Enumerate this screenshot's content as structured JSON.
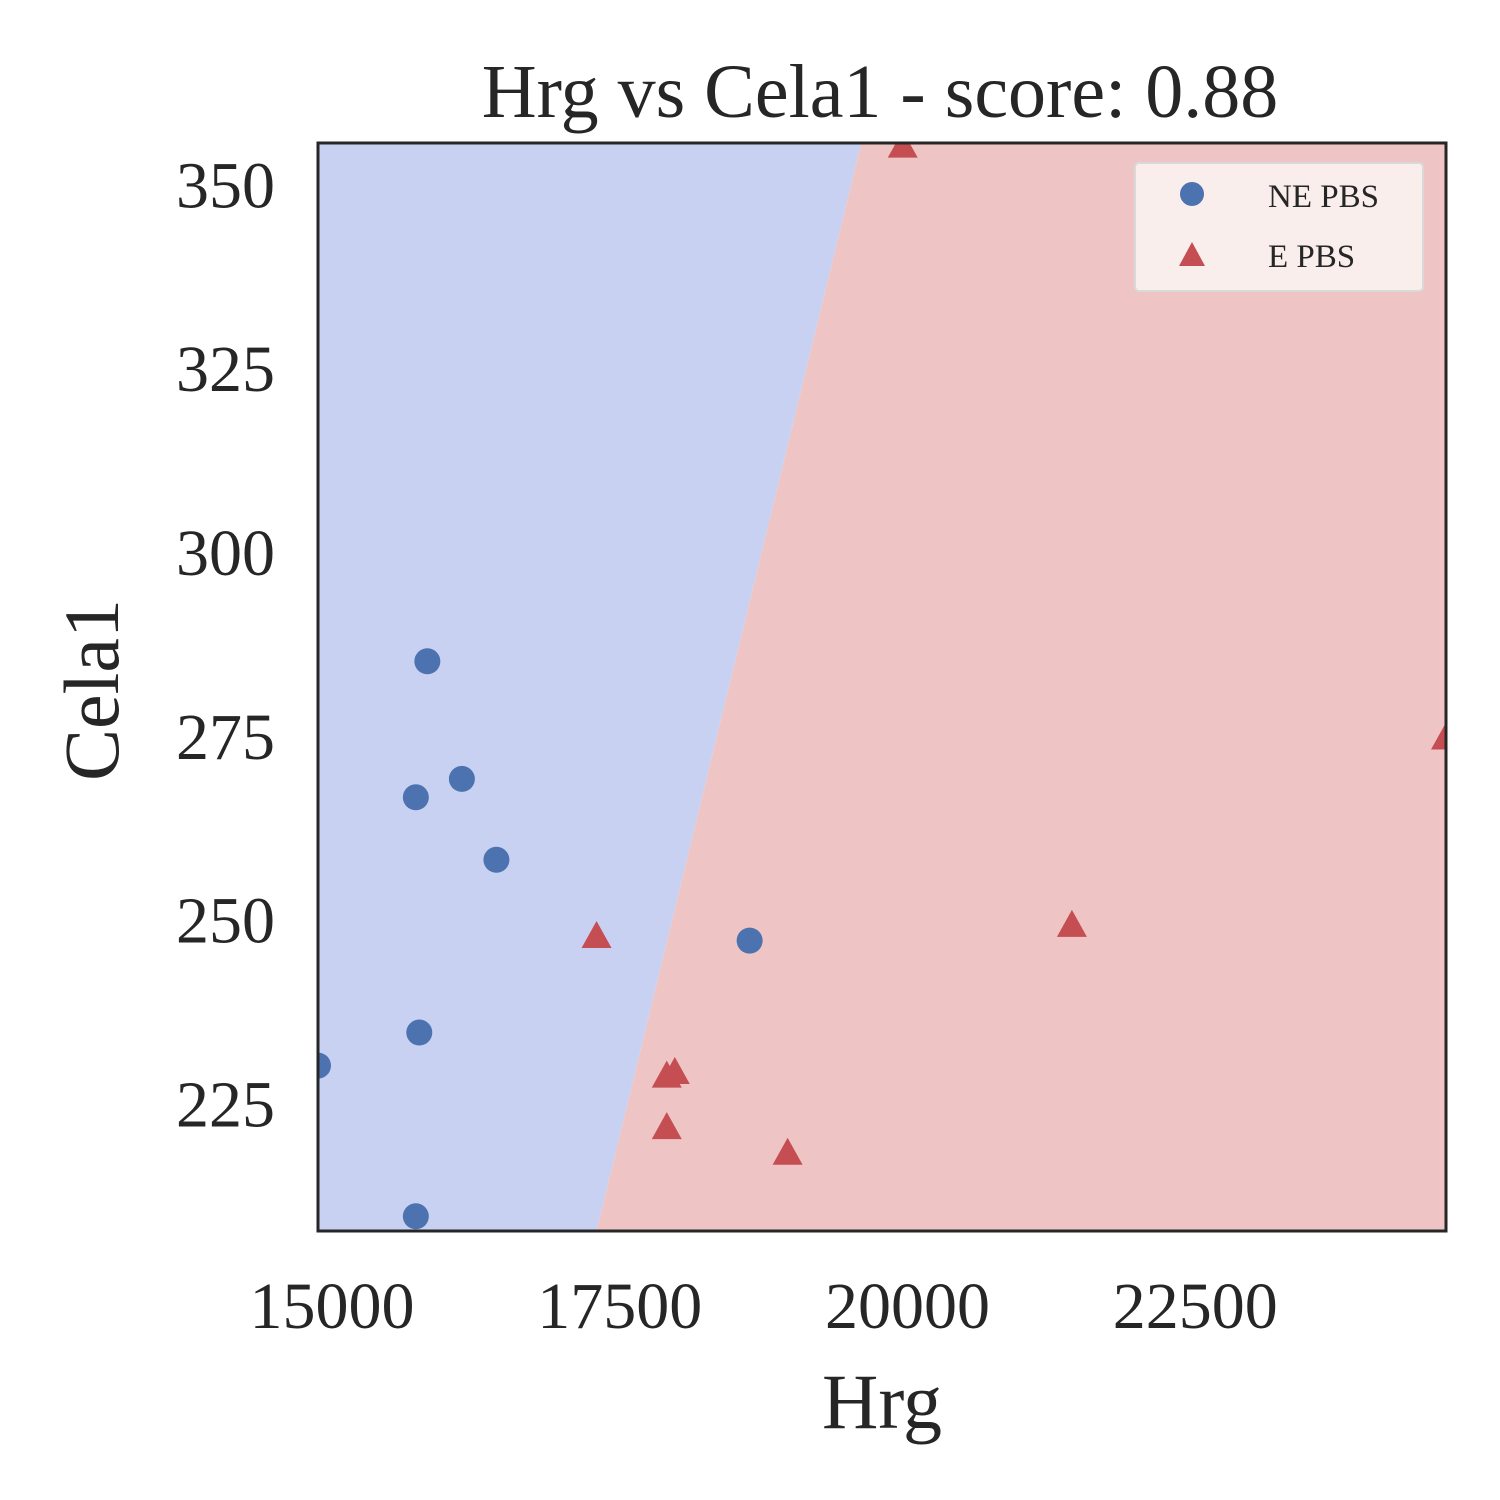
{
  "chart_data": {
    "type": "scatter",
    "title": "Hrg vs Cela1 - score: 0.88",
    "xlabel": "Hrg",
    "ylabel": "Cela1",
    "xlim": [
      15000,
      24800
    ],
    "ylim": [
      207.5,
      355.5
    ],
    "xticks": [
      15000,
      17500,
      20000,
      22500
    ],
    "xtick_labels": [
      "15000",
      "17500",
      "20000",
      "22500"
    ],
    "yticks": [
      225,
      250,
      275,
      300,
      325,
      350
    ],
    "ytick_labels": [
      "225",
      "250",
      "275",
      "300",
      "325",
      "350"
    ],
    "grid": false,
    "legend_position": "top-right",
    "decision_boundary": {
      "points": [
        [
          17420,
          207.5
        ],
        [
          19720,
          355.5
        ]
      ],
      "left_region": "NE PBS",
      "right_region": "E PBS",
      "left_color": "#c8d1f1",
      "right_color": "#eec5c4"
    },
    "series": [
      {
        "name": "NE PBS",
        "marker": "circle",
        "color": "#4c72b0",
        "x": [
          15000,
          15950,
          16250,
          16550,
          15850,
          15880,
          18750,
          15850
        ],
        "y": [
          230.0,
          285.0,
          269.0,
          258.0,
          266.5,
          234.5,
          247.0,
          209.5
        ]
      },
      {
        "name": "E PBS",
        "marker": "triangle",
        "color": "#c44e52",
        "x": [
          20080,
          24800,
          17420,
          21550,
          18100,
          18030,
          18030,
          19080
        ],
        "y": [
          355.0,
          274.5,
          247.5,
          249.0,
          229.0,
          228.5,
          221.5,
          218.0
        ]
      }
    ]
  }
}
